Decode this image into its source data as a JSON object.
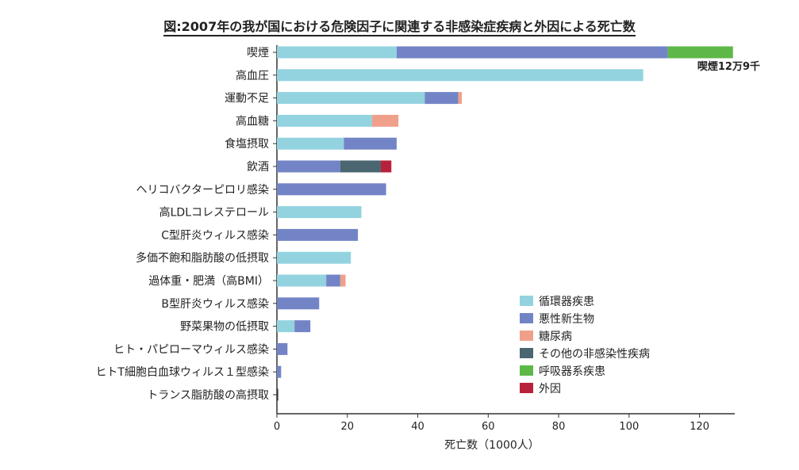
{
  "chart_data": {
    "type": "bar",
    "orientation": "horizontal",
    "stacked": true,
    "title": "図:2007年の我が国における危険因子に関連する非感染症疾病と外因による死亡数",
    "xlabel": "死亡数（1000人）",
    "ylabel": "",
    "xlim": [
      0,
      130
    ],
    "xticks": [
      0,
      20,
      40,
      60,
      80,
      100,
      120
    ],
    "grid": false,
    "legend_position": "bottom-right",
    "categories": [
      "喫煙",
      "高血圧",
      "運動不足",
      "高血糖",
      "食塩摂取",
      "飲酒",
      "ヘリコバクターピロリ感染",
      "高LDLコレステロール",
      "C型肝炎ウィルス感染",
      "多価不飽和脂肪酸の低摂取",
      "過体重・肥満（高BMI）",
      "B型肝炎ウィルス感染",
      "野菜果物の低摂取",
      "ヒト・パピローマウィルス感染",
      "ヒトT細胞白血球ウィルス１型感染",
      "トランス脂肪酸の高摂取"
    ],
    "series": [
      {
        "name": "循環器疾患",
        "color": "#93d3e0",
        "values": [
          34,
          104,
          42,
          27,
          19,
          0,
          0,
          24,
          0,
          21,
          14,
          0,
          5,
          0,
          0,
          0
        ]
      },
      {
        "name": "悪性新生物",
        "color": "#7384c6",
        "values": [
          77,
          0,
          9.5,
          0,
          15,
          18,
          31,
          0,
          23,
          0,
          4,
          12,
          4.5,
          3,
          1.2,
          0
        ]
      },
      {
        "name": "糖尿病",
        "color": "#f0a08a",
        "values": [
          0,
          0,
          1,
          7.5,
          0,
          0,
          0,
          0,
          0,
          0,
          1.5,
          0,
          0,
          0,
          0,
          0
        ]
      },
      {
        "name": "その他の非感染性疾病",
        "color": "#4a6670",
        "values": [
          0,
          0,
          0,
          0,
          0,
          11.5,
          0,
          0,
          0,
          0,
          0,
          0,
          0,
          0,
          0,
          0
        ]
      },
      {
        "name": "呼吸器系疾患",
        "color": "#5db848",
        "values": [
          18.5,
          0,
          0,
          0,
          0,
          0,
          0,
          0,
          0,
          0,
          0,
          0,
          0,
          0,
          0,
          0
        ]
      },
      {
        "name": "外因",
        "color": "#b8213b",
        "values": [
          0,
          0,
          0,
          0,
          0,
          3,
          0,
          0,
          0,
          0,
          0,
          0,
          0,
          0,
          0,
          0
        ]
      }
    ],
    "annotations": [
      {
        "category": "喫煙",
        "text": "喫煙12万9千"
      }
    ]
  }
}
